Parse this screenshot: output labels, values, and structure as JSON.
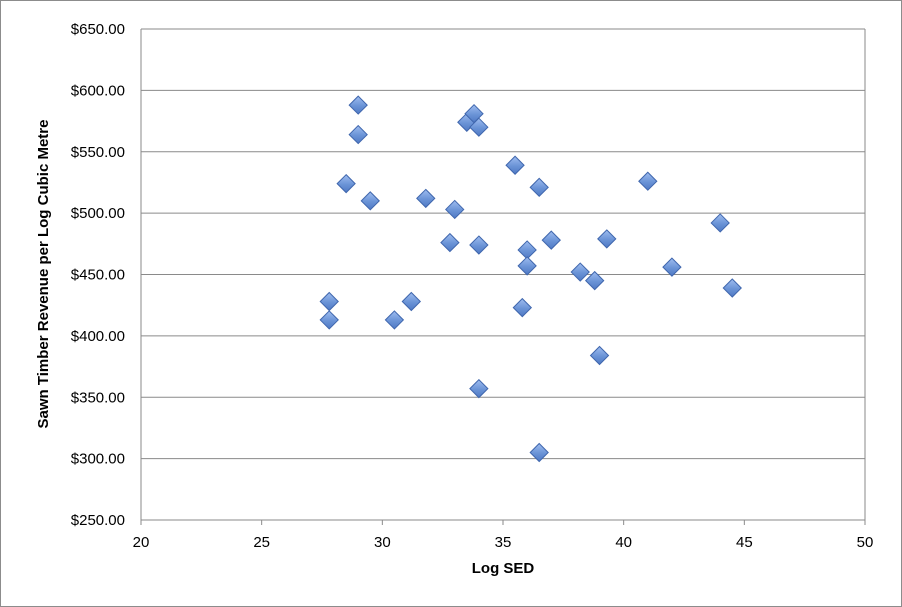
{
  "chart_data": {
    "type": "scatter",
    "title": "",
    "xlabel": "Log SED",
    "ylabel": "Sawn Timber Revenue per Log Cubic Metre",
    "xlim": [
      20,
      50
    ],
    "ylim": [
      250,
      650
    ],
    "x_ticks": [
      "20",
      "25",
      "30",
      "35",
      "40",
      "45",
      "50"
    ],
    "y_ticks": [
      "$650.00",
      "$600.00",
      "$550.00",
      "$500.00",
      "$450.00",
      "$400.00",
      "$350.00",
      "$300.00",
      "$250.00"
    ],
    "grid": "horizontal",
    "legend": "none",
    "marker": "diamond",
    "marker_color": "#6a93d6",
    "points": [
      {
        "x": 27.8,
        "y": 428
      },
      {
        "x": 27.8,
        "y": 413
      },
      {
        "x": 28.5,
        "y": 524
      },
      {
        "x": 29.0,
        "y": 588
      },
      {
        "x": 29.0,
        "y": 564
      },
      {
        "x": 29.5,
        "y": 510
      },
      {
        "x": 30.5,
        "y": 413
      },
      {
        "x": 31.2,
        "y": 428
      },
      {
        "x": 31.8,
        "y": 512
      },
      {
        "x": 32.8,
        "y": 476
      },
      {
        "x": 33.0,
        "y": 503
      },
      {
        "x": 33.5,
        "y": 574
      },
      {
        "x": 33.8,
        "y": 581
      },
      {
        "x": 34.0,
        "y": 570
      },
      {
        "x": 34.0,
        "y": 474
      },
      {
        "x": 34.0,
        "y": 357
      },
      {
        "x": 35.5,
        "y": 539
      },
      {
        "x": 35.8,
        "y": 423
      },
      {
        "x": 36.0,
        "y": 470
      },
      {
        "x": 36.0,
        "y": 457
      },
      {
        "x": 36.5,
        "y": 521
      },
      {
        "x": 36.5,
        "y": 305
      },
      {
        "x": 37.0,
        "y": 478
      },
      {
        "x": 38.2,
        "y": 452
      },
      {
        "x": 38.8,
        "y": 445
      },
      {
        "x": 39.0,
        "y": 384
      },
      {
        "x": 39.3,
        "y": 479
      },
      {
        "x": 41.0,
        "y": 526
      },
      {
        "x": 42.0,
        "y": 456
      },
      {
        "x": 44.0,
        "y": 492
      },
      {
        "x": 44.5,
        "y": 439
      }
    ]
  }
}
